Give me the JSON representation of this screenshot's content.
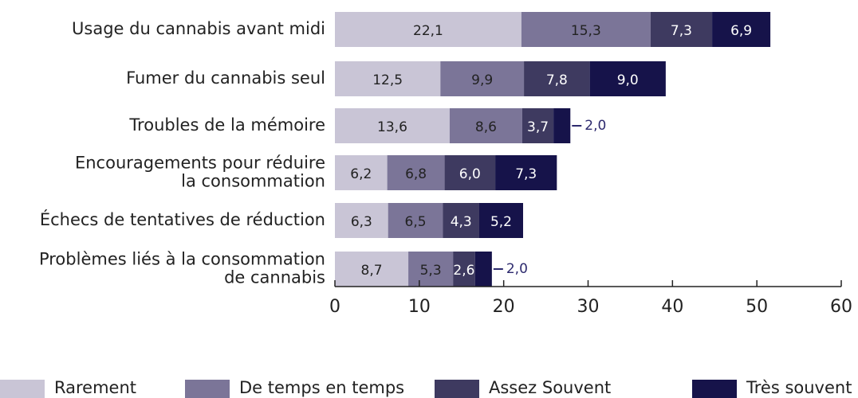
{
  "chart_data": {
    "type": "stacked-bar-horizontal",
    "categories": [
      "Usage du cannabis avant midi",
      "Fumer du cannabis seul",
      "Troubles de la mémoire",
      "Encouragements pour réduire\nla consommation",
      "Échecs de tentatives de réduction",
      "Problèmes liés à la consommation\nde cannabis"
    ],
    "series": [
      {
        "name": "Rarement",
        "color": "#c9c5d6",
        "values": [
          22.1,
          12.5,
          13.6,
          6.2,
          6.3,
          8.7
        ],
        "value_labels": [
          "22,1",
          "12,5",
          "13,6",
          "6,2",
          "6,3",
          "8,7"
        ]
      },
      {
        "name": "De temps en temps",
        "color": "#7b7598",
        "values": [
          15.3,
          9.9,
          8.6,
          6.8,
          6.5,
          5.3
        ],
        "value_labels": [
          "15,3",
          "9,9",
          "8,6",
          "6,8",
          "6,5",
          "5,3"
        ]
      },
      {
        "name": "Assez Souvent",
        "color": "#3e3a60",
        "values": [
          7.3,
          7.8,
          3.7,
          6.0,
          4.3,
          2.6
        ],
        "value_labels": [
          "7,3",
          "7,8",
          "3,7",
          "6,0",
          "4,3",
          "2,6"
        ]
      },
      {
        "name": "Très souvent",
        "color": "#16134a",
        "values": [
          6.9,
          9.0,
          2.0,
          7.3,
          5.2,
          2.0
        ],
        "value_labels": [
          "6,9",
          "9,0",
          "2,0",
          "7,3",
          "5,2",
          "2,0"
        ]
      }
    ],
    "xlim": [
      0,
      60
    ],
    "xticks": [
      0,
      10,
      20,
      30,
      40,
      50,
      60
    ],
    "legend": "bottom"
  }
}
